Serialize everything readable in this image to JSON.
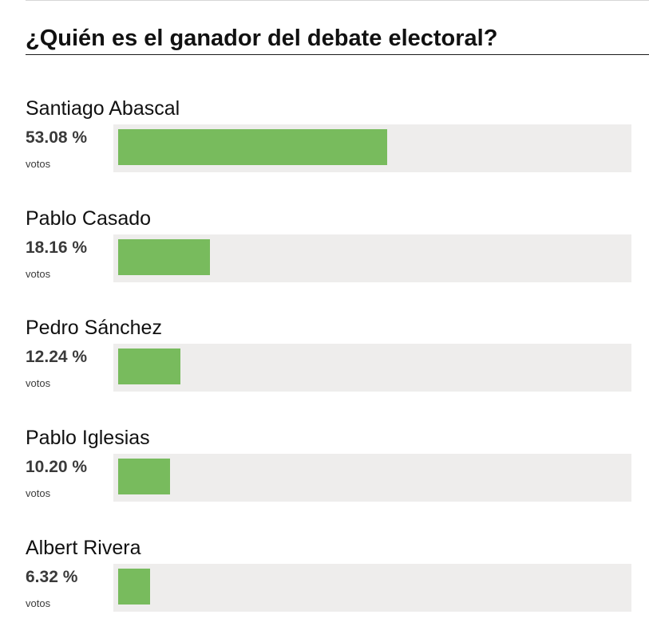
{
  "poll": {
    "title": "¿Quién es el ganador del debate electoral?",
    "bar_color": "#78bb5d",
    "track_color": "#eeedec",
    "options": [
      {
        "name": "Santiago Abascal",
        "percent_label": "53.08 %",
        "unit": "votos",
        "percent": 53.08
      },
      {
        "name": "Pablo Casado",
        "percent_label": "18.16 %",
        "unit": "votos",
        "percent": 18.16
      },
      {
        "name": "Pedro Sánchez",
        "percent_label": "12.24 %",
        "unit": "votos",
        "percent": 12.24
      },
      {
        "name": "Pablo Iglesias",
        "percent_label": "10.20 %",
        "unit": "votos",
        "percent": 10.2
      },
      {
        "name": "Albert Rivera",
        "percent_label": "6.32 %",
        "unit": "votos",
        "percent": 6.32
      }
    ]
  }
}
